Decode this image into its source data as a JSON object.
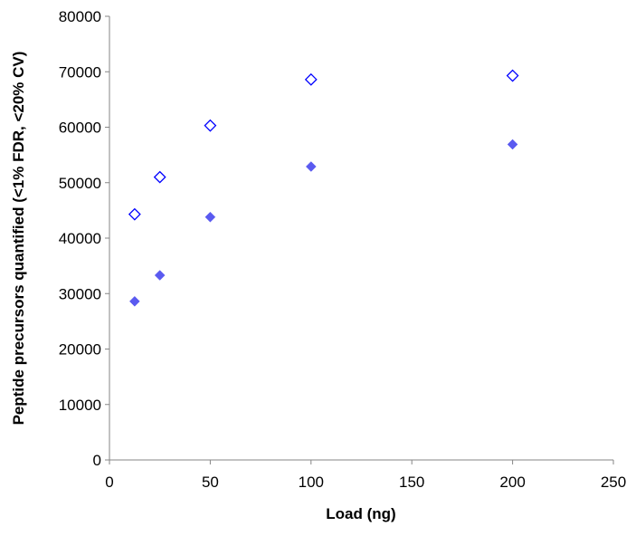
{
  "chart_data": {
    "type": "scatter",
    "title": "",
    "xlabel": "Load (ng)",
    "ylabel": "Peptide precursors quantified (<1% FDR, <20% CV)",
    "xlim": [
      0,
      250
    ],
    "ylim": [
      0,
      80000
    ],
    "xticks": [
      0,
      50,
      100,
      150,
      200,
      250
    ],
    "yticks": [
      0,
      10000,
      20000,
      30000,
      40000,
      50000,
      60000,
      70000,
      80000
    ],
    "grid": false,
    "legend": "none",
    "series": [
      {
        "name": "open diamonds",
        "marker": "diamond-open",
        "color": "#0000ff",
        "x": [
          12.5,
          25,
          50,
          100,
          200
        ],
        "y": [
          44300,
          51000,
          60300,
          68600,
          69300
        ]
      },
      {
        "name": "filled diamonds",
        "marker": "diamond-filled",
        "color": "#5a5af0",
        "x": [
          12.5,
          25,
          50,
          100,
          200
        ],
        "y": [
          28600,
          33300,
          43800,
          52900,
          56900
        ]
      }
    ]
  }
}
